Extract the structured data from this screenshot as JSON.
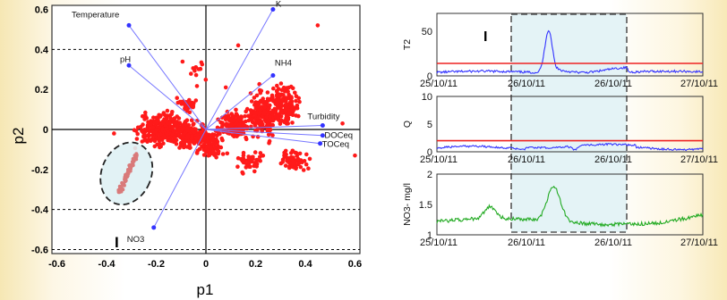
{
  "colors": {
    "red": "#ff1a1a",
    "blue": "#3333ff",
    "green": "#22aa22",
    "shade": "#dff1f4",
    "hline": "#ee2222"
  },
  "chart_data": [
    {
      "type": "scatter",
      "xlabel": "p1",
      "ylabel": "p2",
      "xlim": [
        -0.62,
        0.62
      ],
      "ylim": [
        -0.62,
        0.62
      ],
      "xticks": [
        "-0.6",
        "-0.4",
        "-0.2",
        "0",
        "0.2",
        "0.4",
        "0.6"
      ],
      "yticks": [
        "0.6",
        "0.4",
        "0.2",
        "0",
        "-0.2",
        "-0.4",
        "-0.6"
      ],
      "grid": false,
      "dashed_lines_y": [
        0.4,
        -0.4,
        -0.6
      ],
      "loadings": [
        {
          "label": "Temperature",
          "x": -0.31,
          "y": 0.52
        },
        {
          "label": "pH",
          "x": -0.31,
          "y": 0.32
        },
        {
          "label": "K",
          "x": 0.27,
          "y": 0.6
        },
        {
          "label": "NH4",
          "x": 0.27,
          "y": 0.27
        },
        {
          "label": "Turbidity",
          "x": 0.47,
          "y": 0.02
        },
        {
          "label": "DOCeq",
          "x": 0.47,
          "y": -0.03
        },
        {
          "label": "TOCeq",
          "x": 0.46,
          "y": -0.07
        },
        {
          "label": "NO3",
          "x": -0.21,
          "y": -0.49
        }
      ],
      "cluster_label": "I",
      "highlight_ellipse": {
        "cx": -0.32,
        "cy": -0.22,
        "rx": 0.1,
        "ry": 0.16
      }
    },
    {
      "type": "line",
      "ylabel": "T2",
      "ylim": [
        0,
        70
      ],
      "yticks": [
        "50",
        "0"
      ],
      "xticks": [
        "25/10/11",
        "26/10/11",
        "26/10/11",
        "27/10/11"
      ],
      "threshold": 14,
      "series_color": "blue",
      "baseline": 4,
      "peak": {
        "pos": 0.42,
        "height": 48
      },
      "label": "I"
    },
    {
      "type": "line",
      "ylabel": "Q",
      "ylim": [
        0,
        10
      ],
      "yticks": [
        "10",
        "5",
        "0"
      ],
      "xticks": [
        "25/10/11",
        "26/10/11",
        "26/10/11",
        "27/10/11"
      ],
      "threshold": 2,
      "series_color": "blue",
      "baseline": 0.7
    },
    {
      "type": "line",
      "ylabel": "NO3- mg/l",
      "ylim": [
        1,
        2
      ],
      "yticks": [
        "2",
        "1.5",
        "1"
      ],
      "xticks": [
        "25/10/11",
        "26/10/11",
        "26/10/11",
        "27/10/11"
      ],
      "series_color": "green",
      "baseline": 1.22
    }
  ]
}
